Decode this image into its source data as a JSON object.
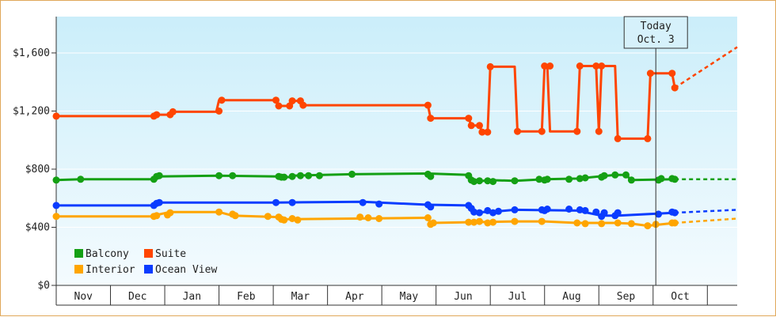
{
  "chart_data": {
    "type": "line",
    "yaxis": {
      "range": [
        0,
        1850
      ],
      "ticks": [
        {
          "value": 0,
          "label": "$0"
        },
        {
          "value": 400,
          "label": "$400"
        },
        {
          "value": 800,
          "label": "$800"
        },
        {
          "value": 1200,
          "label": "$1,200"
        },
        {
          "value": 1600,
          "label": "$1,600"
        }
      ]
    },
    "xaxis": {
      "range": [
        0,
        12.55
      ],
      "months": [
        "Nov",
        "Dec",
        "Jan",
        "Feb",
        "Mar",
        "Apr",
        "May",
        "Jun",
        "Jul",
        "Aug",
        "Sep",
        "Oct"
      ]
    },
    "today": {
      "x": 11.05,
      "line1": "Today",
      "line2": "Oct. 3"
    },
    "legend": [
      {
        "label": "Balcony",
        "color": "#14a014"
      },
      {
        "label": "Suite",
        "color": "#ff4500"
      },
      {
        "label": "Interior",
        "color": "#ffa500"
      },
      {
        "label": "Ocean View",
        "color": "#0a3cff"
      }
    ],
    "series": [
      {
        "name": "Suite",
        "color": "#ff4500",
        "points": [
          [
            0,
            1165
          ],
          [
            1.8,
            1165
          ],
          [
            1.85,
            1175
          ],
          [
            2.1,
            1175
          ],
          [
            2.15,
            1195
          ],
          [
            2.95,
            1195
          ],
          [
            3.0,
            1275
          ],
          [
            4.05,
            1275
          ],
          [
            4.1,
            1235
          ],
          [
            4.3,
            1235
          ],
          [
            4.35,
            1270
          ],
          [
            4.5,
            1270
          ],
          [
            4.55,
            1240
          ],
          [
            6.85,
            1240
          ],
          [
            6.9,
            1150
          ],
          [
            7.6,
            1150
          ],
          [
            7.65,
            1100
          ],
          [
            7.8,
            1100
          ],
          [
            7.85,
            1055
          ],
          [
            7.95,
            1055
          ],
          [
            8.0,
            1505
          ],
          [
            8.45,
            1505
          ],
          [
            8.5,
            1060
          ],
          [
            8.95,
            1060
          ],
          [
            9.0,
            1510
          ],
          [
            9.05,
            1510
          ],
          [
            9.1,
            1060
          ],
          [
            9.6,
            1060
          ],
          [
            9.65,
            1510
          ],
          [
            9.95,
            1510
          ],
          [
            10.0,
            1060
          ],
          [
            10.05,
            1510
          ],
          [
            10.3,
            1510
          ],
          [
            10.35,
            1010
          ],
          [
            10.9,
            1010
          ],
          [
            10.95,
            1460
          ],
          [
            11.35,
            1460
          ],
          [
            11.4,
            1360
          ]
        ],
        "markers": [
          [
            0,
            1165
          ],
          [
            1.8,
            1165
          ],
          [
            1.85,
            1175
          ],
          [
            2.1,
            1175
          ],
          [
            2.15,
            1195
          ],
          [
            3.0,
            1200
          ],
          [
            3.05,
            1275
          ],
          [
            4.05,
            1275
          ],
          [
            4.1,
            1235
          ],
          [
            4.3,
            1235
          ],
          [
            4.35,
            1270
          ],
          [
            4.5,
            1270
          ],
          [
            4.55,
            1240
          ],
          [
            6.85,
            1240
          ],
          [
            6.9,
            1150
          ],
          [
            7.6,
            1150
          ],
          [
            7.65,
            1100
          ],
          [
            7.8,
            1100
          ],
          [
            7.85,
            1055
          ],
          [
            7.95,
            1055
          ],
          [
            8.0,
            1505
          ],
          [
            8.5,
            1060
          ],
          [
            8.95,
            1060
          ],
          [
            9.0,
            1510
          ],
          [
            9.1,
            1510
          ],
          [
            9.6,
            1060
          ],
          [
            9.65,
            1510
          ],
          [
            9.95,
            1510
          ],
          [
            10.0,
            1060
          ],
          [
            10.05,
            1510
          ],
          [
            10.35,
            1010
          ],
          [
            10.9,
            1010
          ],
          [
            10.95,
            1460
          ],
          [
            11.35,
            1460
          ],
          [
            11.4,
            1360
          ]
        ],
        "projection": [
          [
            11.4,
            1360
          ],
          [
            12.55,
            1640
          ]
        ]
      },
      {
        "name": "Balcony",
        "color": "#14a014",
        "points": [
          [
            0,
            725
          ],
          [
            0.45,
            730
          ],
          [
            1.8,
            730
          ],
          [
            1.85,
            750
          ],
          [
            3.0,
            755
          ],
          [
            4.1,
            750
          ],
          [
            4.3,
            745
          ],
          [
            4.35,
            755
          ],
          [
            5.45,
            765
          ],
          [
            6.85,
            770
          ],
          [
            7.6,
            760
          ],
          [
            7.65,
            725
          ],
          [
            7.8,
            715
          ],
          [
            7.95,
            725
          ],
          [
            8.45,
            720
          ],
          [
            9.0,
            730
          ],
          [
            9.6,
            735
          ],
          [
            10.3,
            760
          ],
          [
            10.5,
            760
          ],
          [
            10.6,
            725
          ],
          [
            11.4,
            730
          ]
        ],
        "markers": [
          [
            0,
            725
          ],
          [
            0.45,
            730
          ],
          [
            1.8,
            730
          ],
          [
            1.85,
            750
          ],
          [
            1.9,
            755
          ],
          [
            3.0,
            755
          ],
          [
            3.25,
            755
          ],
          [
            4.1,
            750
          ],
          [
            4.15,
            745
          ],
          [
            4.2,
            745
          ],
          [
            4.35,
            750
          ],
          [
            4.5,
            755
          ],
          [
            4.65,
            755
          ],
          [
            4.85,
            755
          ],
          [
            5.45,
            765
          ],
          [
            6.85,
            765
          ],
          [
            6.9,
            750
          ],
          [
            7.6,
            755
          ],
          [
            7.65,
            725
          ],
          [
            7.7,
            715
          ],
          [
            7.8,
            720
          ],
          [
            7.95,
            720
          ],
          [
            8.05,
            715
          ],
          [
            8.45,
            720
          ],
          [
            8.9,
            730
          ],
          [
            9.0,
            725
          ],
          [
            9.05,
            730
          ],
          [
            9.45,
            730
          ],
          [
            9.65,
            735
          ],
          [
            9.75,
            740
          ],
          [
            10.05,
            745
          ],
          [
            10.1,
            755
          ],
          [
            10.3,
            760
          ],
          [
            10.5,
            760
          ],
          [
            10.6,
            725
          ],
          [
            11.1,
            725
          ],
          [
            11.15,
            735
          ],
          [
            11.35,
            735
          ],
          [
            11.4,
            730
          ]
        ],
        "projection": [
          [
            11.4,
            730
          ],
          [
            12.55,
            730
          ]
        ]
      },
      {
        "name": "Ocean View",
        "color": "#0a3cff",
        "points": [
          [
            0,
            550
          ],
          [
            1.8,
            550
          ],
          [
            1.85,
            570
          ],
          [
            4.05,
            570
          ],
          [
            5.65,
            575
          ],
          [
            6.85,
            555
          ],
          [
            7.6,
            550
          ],
          [
            7.7,
            505
          ],
          [
            8.0,
            505
          ],
          [
            8.45,
            520
          ],
          [
            9.6,
            515
          ],
          [
            10.05,
            480
          ],
          [
            10.35,
            480
          ],
          [
            11.4,
            500
          ]
        ],
        "markers": [
          [
            0,
            550
          ],
          [
            1.8,
            550
          ],
          [
            1.85,
            565
          ],
          [
            1.9,
            570
          ],
          [
            4.05,
            570
          ],
          [
            4.35,
            570
          ],
          [
            5.65,
            570
          ],
          [
            5.95,
            560
          ],
          [
            6.85,
            555
          ],
          [
            6.9,
            540
          ],
          [
            7.6,
            550
          ],
          [
            7.65,
            530
          ],
          [
            7.7,
            505
          ],
          [
            7.8,
            500
          ],
          [
            7.95,
            515
          ],
          [
            8.05,
            500
          ],
          [
            8.15,
            510
          ],
          [
            8.45,
            520
          ],
          [
            8.95,
            520
          ],
          [
            9.0,
            515
          ],
          [
            9.05,
            525
          ],
          [
            9.45,
            525
          ],
          [
            9.65,
            520
          ],
          [
            9.75,
            515
          ],
          [
            9.95,
            505
          ],
          [
            10.05,
            475
          ],
          [
            10.1,
            500
          ],
          [
            10.3,
            480
          ],
          [
            10.35,
            500
          ],
          [
            11.1,
            490
          ],
          [
            11.35,
            505
          ],
          [
            11.4,
            500
          ]
        ],
        "projection": [
          [
            11.4,
            500
          ],
          [
            12.55,
            520
          ]
        ]
      },
      {
        "name": "Interior",
        "color": "#ffa500",
        "points": [
          [
            0,
            475
          ],
          [
            1.8,
            475
          ],
          [
            1.85,
            485
          ],
          [
            2.1,
            505
          ],
          [
            3.0,
            505
          ],
          [
            3.25,
            480
          ],
          [
            4.1,
            470
          ],
          [
            4.15,
            455
          ],
          [
            6.85,
            465
          ],
          [
            6.9,
            430
          ],
          [
            7.6,
            435
          ],
          [
            8.45,
            440
          ],
          [
            9.0,
            440
          ],
          [
            9.6,
            430
          ],
          [
            10.3,
            430
          ],
          [
            10.6,
            425
          ],
          [
            10.9,
            410
          ],
          [
            11.4,
            430
          ]
        ],
        "markers": [
          [
            0,
            475
          ],
          [
            1.8,
            475
          ],
          [
            1.85,
            480
          ],
          [
            2.05,
            485
          ],
          [
            2.1,
            500
          ],
          [
            3.0,
            505
          ],
          [
            3.25,
            490
          ],
          [
            3.3,
            480
          ],
          [
            3.9,
            475
          ],
          [
            4.1,
            470
          ],
          [
            4.15,
            455
          ],
          [
            4.2,
            450
          ],
          [
            4.35,
            460
          ],
          [
            4.45,
            450
          ],
          [
            5.6,
            470
          ],
          [
            5.75,
            465
          ],
          [
            5.95,
            460
          ],
          [
            6.85,
            465
          ],
          [
            6.9,
            420
          ],
          [
            6.95,
            430
          ],
          [
            7.6,
            435
          ],
          [
            7.7,
            435
          ],
          [
            7.8,
            440
          ],
          [
            7.95,
            430
          ],
          [
            8.05,
            435
          ],
          [
            8.45,
            440
          ],
          [
            8.95,
            440
          ],
          [
            9.6,
            430
          ],
          [
            9.75,
            425
          ],
          [
            10.05,
            425
          ],
          [
            10.35,
            430
          ],
          [
            10.6,
            425
          ],
          [
            10.9,
            410
          ],
          [
            11.05,
            420
          ],
          [
            11.35,
            430
          ],
          [
            11.4,
            430
          ]
        ],
        "projection": [
          [
            11.4,
            430
          ],
          [
            12.55,
            460
          ]
        ]
      }
    ]
  }
}
